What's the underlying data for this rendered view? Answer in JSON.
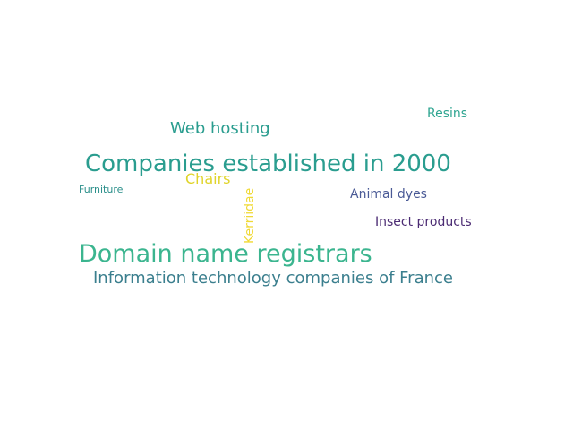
{
  "words": [
    {
      "text": "Companies established in 2000",
      "color": "#2a9d8f"
    },
    {
      "text": "Domain name registrars",
      "color": "#3bb58f"
    },
    {
      "text": "Information technology companies of France",
      "color": "#3b7f8e"
    },
    {
      "text": "Web hosting",
      "color": "#2a9d8f"
    },
    {
      "text": "Resins",
      "color": "#2fa591"
    },
    {
      "text": "Chairs",
      "color": "#e0d42a"
    },
    {
      "text": "Kerriidae",
      "color": "#f0d935"
    },
    {
      "text": "Furniture",
      "color": "#2a8f8a"
    },
    {
      "text": "Animal dyes",
      "color": "#4a5a96"
    },
    {
      "text": "Insect products",
      "color": "#4b2b73"
    }
  ]
}
